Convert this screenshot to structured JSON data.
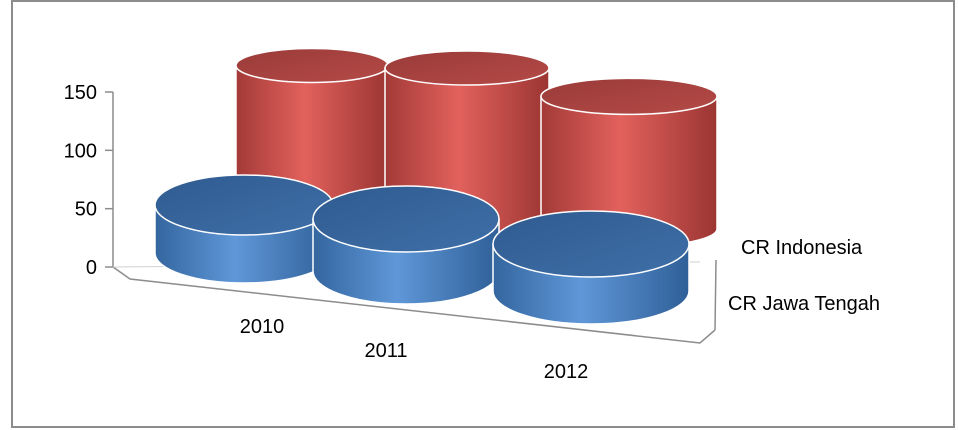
{
  "chart_data": {
    "type": "bar",
    "style": "3d-cylinder",
    "categories": [
      "2010",
      "2011",
      "2012"
    ],
    "series": [
      {
        "name": "CR Jawa Tengah",
        "values": [
          48,
          52,
          47
        ],
        "color": "#4f81bd"
      },
      {
        "name": "CR Indonesia",
        "values": [
          168,
          173,
          149
        ],
        "color": "#c0504d"
      }
    ],
    "yticks": [
      0,
      50,
      100,
      150
    ],
    "ylim": [
      0,
      150
    ],
    "grid": false
  }
}
